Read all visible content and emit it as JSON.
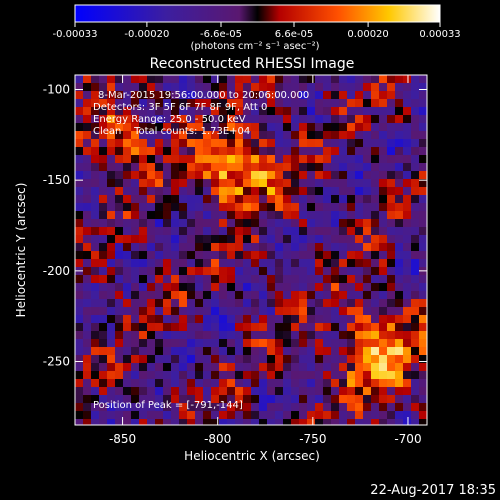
{
  "chart_data": {
    "type": "heatmap",
    "title": "Reconstructed RHESSI Image",
    "xlabel": "Heliocentric X (arcsec)",
    "ylabel": "Heliocentric Y (arcsec)",
    "xlim": [
      -875,
      -690
    ],
    "ylim": [
      -285,
      -92
    ],
    "xticks": [
      -850,
      -800,
      -750,
      -700
    ],
    "xtick_labels": [
      "-850",
      "-800",
      "-750",
      "-700"
    ],
    "yticks": [
      -100,
      -150,
      -200,
      -250
    ],
    "ytick_labels": [
      "-100",
      "-150",
      "-200",
      "-250"
    ],
    "colorbar": {
      "range": [
        -0.00033,
        0.00033
      ],
      "tick_values": [
        -0.00033,
        -0.0002,
        -6.6e-05,
        6.6e-05,
        0.0002,
        0.00033
      ],
      "tick_labels": [
        "-0.00033",
        "-0.00020",
        "-6.6e-05",
        "6.6e-05",
        "0.00020",
        "0.00033"
      ],
      "units_label": "(photons cm⁻² s⁻¹ asec⁻²)"
    },
    "annotations": [
      "8-Mar-2015 19:56:00.000 to 20:06:00.000",
      "Detectors: 3F 5F 6F 7F 8F 9F, Att 0",
      "Energy Range: 25.0 - 50.0 keV",
      "Clean    Total counts: 1.73E+04"
    ],
    "peak_label": "Position of Peak = [-791,-144]",
    "peak": {
      "x": -791,
      "y": -144
    },
    "colormap": "blue-purple-red-yellow-white"
  },
  "footer": {
    "timestamp": "22-Aug-2017 18:35"
  }
}
